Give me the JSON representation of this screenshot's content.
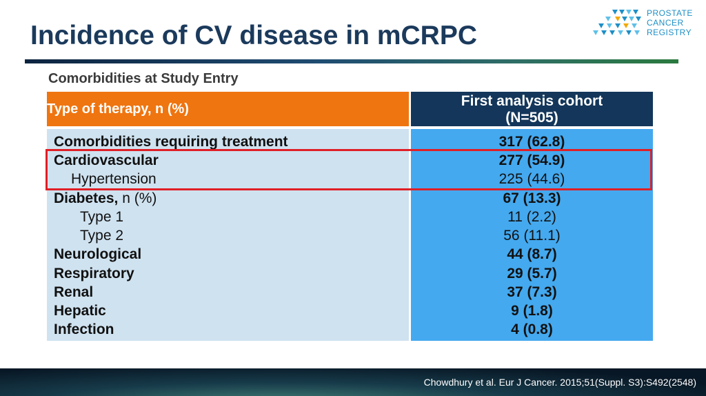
{
  "title": "Incidence of CV disease in mCRPC",
  "logo": {
    "line1": "PROSTATE",
    "line2": "CANCER",
    "line3": "REGISTRY"
  },
  "subtitle": "Comorbidities at Study Entry",
  "table": {
    "header_left": "Type of therapy, n (%)",
    "header_right_line1": "First analysis cohort",
    "header_right_line2": "(N=505)",
    "rows": [
      {
        "label": "Comorbidities requiring treatment",
        "value": "317 (62.8)"
      },
      {
        "label": "Cardiovascular",
        "value": "277 (54.9)"
      },
      {
        "label": "Hypertension",
        "value": "225 (44.6)"
      },
      {
        "label": "Diabetes,",
        "label_suffix": " n (%)",
        "value": "67 (13.3)"
      },
      {
        "label": "Type 1",
        "value": "11 (2.2)"
      },
      {
        "label": "Type 2",
        "value": "56 (11.1)"
      },
      {
        "label": "Neurological",
        "value": "44 (8.7)"
      },
      {
        "label": "Respiratory",
        "value": "29 (5.7)"
      },
      {
        "label": "Renal",
        "value": "37 (7.3)"
      },
      {
        "label": "Hepatic",
        "value": "9 (1.8)"
      },
      {
        "label": "Infection",
        "value": "4 (0.8)"
      }
    ]
  },
  "citation": "Chowdhury et al. Eur J Cancer. 2015;51(Suppl. S3):S492(2548)",
  "colors": {
    "header_orange": "#ef7510",
    "header_navy": "#13365a",
    "body_left": "#cfe2f0",
    "body_right": "#44a9ef",
    "highlight": "#e01f26",
    "title": "#1b3a5c"
  }
}
